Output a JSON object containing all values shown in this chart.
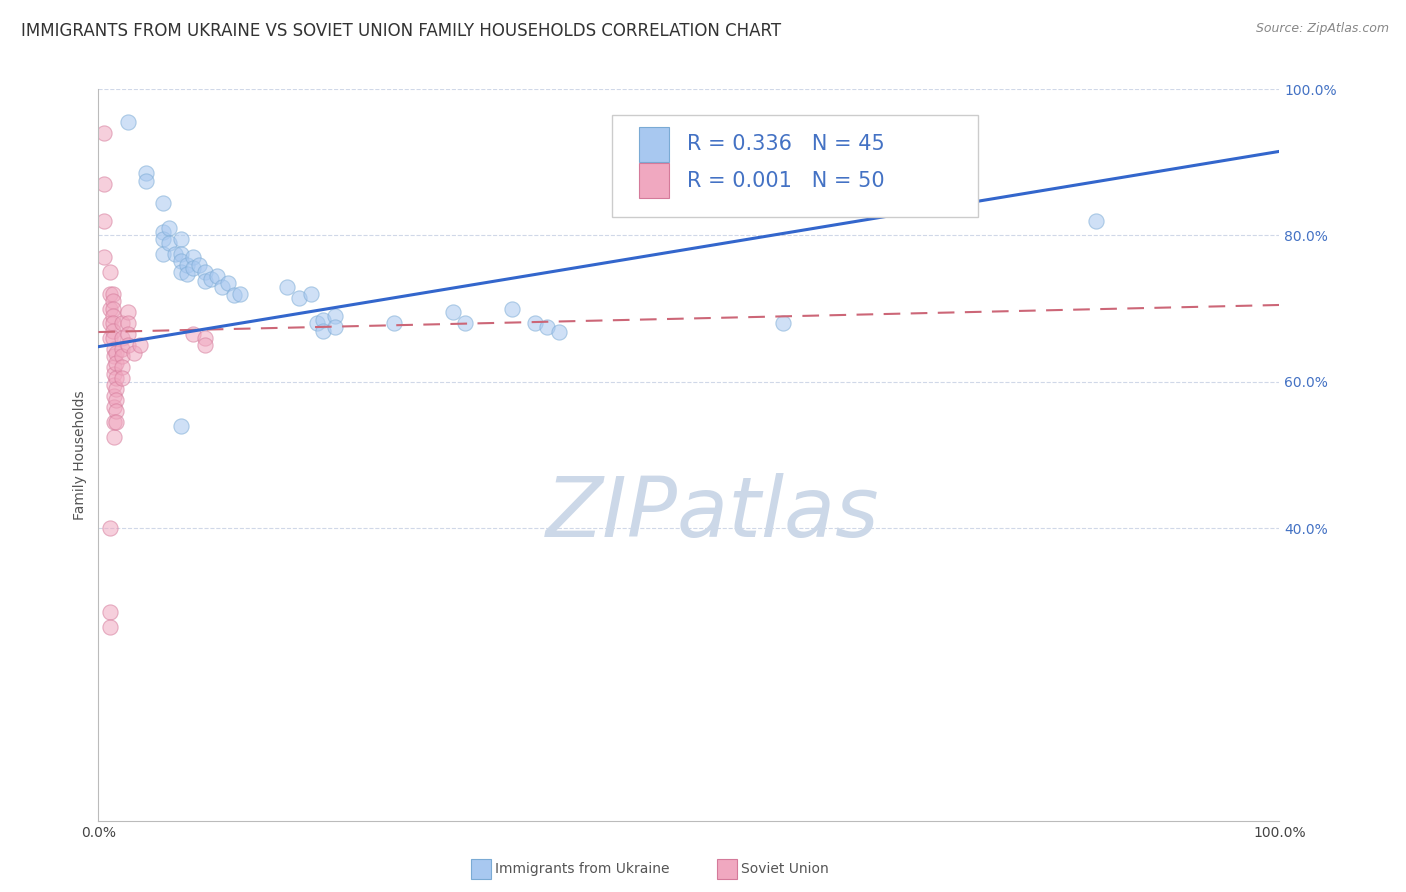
{
  "title": "IMMIGRANTS FROM UKRAINE VS SOVIET UNION FAMILY HOUSEHOLDS CORRELATION CHART",
  "source": "Source: ZipAtlas.com",
  "ylabel": "Family Households",
  "xlim": [
    0.0,
    1.0
  ],
  "ylim": [
    0.0,
    1.0
  ],
  "ytick_positions": [
    0.4,
    0.6,
    0.8,
    1.0
  ],
  "ytick_labels": [
    "40.0%",
    "60.0%",
    "80.0%",
    "100.0%"
  ],
  "xtick_positions": [
    0.0,
    1.0
  ],
  "xtick_labels": [
    "0.0%",
    "100.0%"
  ],
  "legend_r1": "R = 0.336",
  "legend_n1": "N = 45",
  "legend_r2": "R = 0.001",
  "legend_n2": "N = 50",
  "bottom_legend_ukraine": "Immigrants from Ukraine",
  "bottom_legend_soviet": "Soviet Union",
  "watermark": "ZIPatlas",
  "ukraine_color": "#a8c8f0",
  "ukraine_edge_color": "#7aaad4",
  "soviet_color": "#f0a8c0",
  "soviet_edge_color": "#d47a9a",
  "ukraine_line_color": "#3366cc",
  "soviet_line_color": "#cc6677",
  "background_color": "#ffffff",
  "grid_color": "#d0d8e8",
  "title_fontsize": 12,
  "source_fontsize": 9,
  "axis_label_fontsize": 10,
  "tick_fontsize": 10,
  "legend_fontsize": 15,
  "watermark_fontsize": 60,
  "watermark_color": "#ccd8e8",
  "scatter_size": 120,
  "scatter_alpha": 0.55,
  "ukraine_scatter": [
    [
      0.025,
      0.955
    ],
    [
      0.04,
      0.885
    ],
    [
      0.04,
      0.875
    ],
    [
      0.055,
      0.845
    ],
    [
      0.055,
      0.805
    ],
    [
      0.055,
      0.795
    ],
    [
      0.055,
      0.775
    ],
    [
      0.06,
      0.81
    ],
    [
      0.06,
      0.79
    ],
    [
      0.065,
      0.775
    ],
    [
      0.07,
      0.795
    ],
    [
      0.07,
      0.775
    ],
    [
      0.07,
      0.765
    ],
    [
      0.07,
      0.75
    ],
    [
      0.075,
      0.76
    ],
    [
      0.075,
      0.748
    ],
    [
      0.08,
      0.77
    ],
    [
      0.08,
      0.755
    ],
    [
      0.085,
      0.76
    ],
    [
      0.09,
      0.75
    ],
    [
      0.09,
      0.738
    ],
    [
      0.095,
      0.74
    ],
    [
      0.1,
      0.745
    ],
    [
      0.105,
      0.73
    ],
    [
      0.11,
      0.735
    ],
    [
      0.115,
      0.718
    ],
    [
      0.12,
      0.72
    ],
    [
      0.16,
      0.73
    ],
    [
      0.17,
      0.715
    ],
    [
      0.18,
      0.72
    ],
    [
      0.185,
      0.68
    ],
    [
      0.19,
      0.685
    ],
    [
      0.19,
      0.67
    ],
    [
      0.2,
      0.69
    ],
    [
      0.2,
      0.675
    ],
    [
      0.25,
      0.68
    ],
    [
      0.3,
      0.695
    ],
    [
      0.31,
      0.68
    ],
    [
      0.35,
      0.7
    ],
    [
      0.37,
      0.68
    ],
    [
      0.38,
      0.675
    ],
    [
      0.39,
      0.668
    ],
    [
      0.58,
      0.68
    ],
    [
      0.845,
      0.82
    ],
    [
      0.07,
      0.54
    ]
  ],
  "soviet_scatter": [
    [
      0.005,
      0.94
    ],
    [
      0.005,
      0.87
    ],
    [
      0.005,
      0.82
    ],
    [
      0.005,
      0.77
    ],
    [
      0.01,
      0.75
    ],
    [
      0.01,
      0.72
    ],
    [
      0.01,
      0.7
    ],
    [
      0.01,
      0.68
    ],
    [
      0.01,
      0.66
    ],
    [
      0.012,
      0.72
    ],
    [
      0.012,
      0.71
    ],
    [
      0.012,
      0.7
    ],
    [
      0.012,
      0.69
    ],
    [
      0.012,
      0.68
    ],
    [
      0.012,
      0.67
    ],
    [
      0.012,
      0.66
    ],
    [
      0.013,
      0.645
    ],
    [
      0.013,
      0.635
    ],
    [
      0.013,
      0.62
    ],
    [
      0.013,
      0.61
    ],
    [
      0.013,
      0.595
    ],
    [
      0.013,
      0.58
    ],
    [
      0.013,
      0.565
    ],
    [
      0.013,
      0.545
    ],
    [
      0.013,
      0.525
    ],
    [
      0.015,
      0.64
    ],
    [
      0.015,
      0.625
    ],
    [
      0.015,
      0.605
    ],
    [
      0.015,
      0.59
    ],
    [
      0.015,
      0.575
    ],
    [
      0.015,
      0.56
    ],
    [
      0.015,
      0.545
    ],
    [
      0.02,
      0.68
    ],
    [
      0.02,
      0.66
    ],
    [
      0.02,
      0.645
    ],
    [
      0.02,
      0.635
    ],
    [
      0.02,
      0.62
    ],
    [
      0.02,
      0.605
    ],
    [
      0.025,
      0.695
    ],
    [
      0.025,
      0.68
    ],
    [
      0.025,
      0.665
    ],
    [
      0.025,
      0.65
    ],
    [
      0.03,
      0.64
    ],
    [
      0.035,
      0.65
    ],
    [
      0.08,
      0.665
    ],
    [
      0.09,
      0.66
    ],
    [
      0.09,
      0.65
    ],
    [
      0.01,
      0.4
    ],
    [
      0.01,
      0.285
    ],
    [
      0.01,
      0.265
    ]
  ],
  "ukraine_trendline_x": [
    0.0,
    1.0
  ],
  "ukraine_trendline_y": [
    0.648,
    0.915
  ],
  "soviet_trendline_x": [
    0.0,
    1.0
  ],
  "soviet_trendline_y": [
    0.668,
    0.705
  ]
}
